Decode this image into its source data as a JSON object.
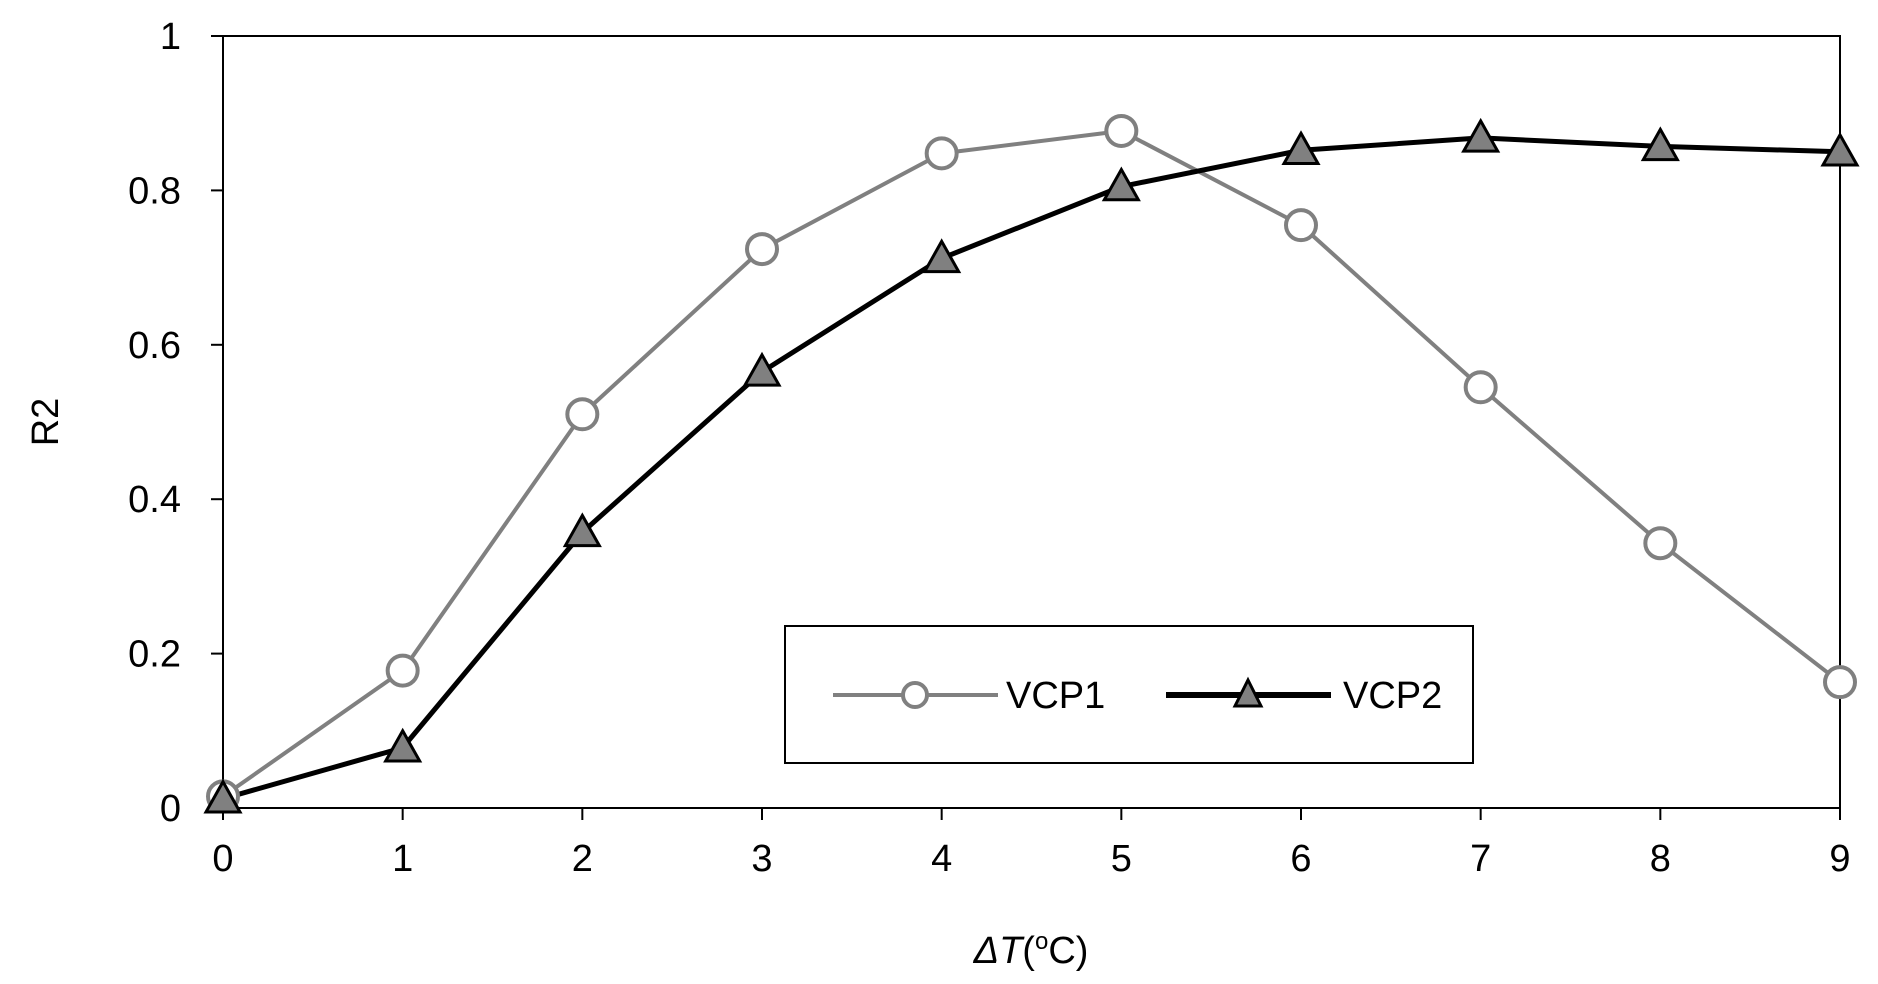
{
  "chart_data": {
    "type": "line",
    "title": "",
    "xlabel_prefix": "ΔT",
    "xlabel_suffix": "(",
    "xlabel_unit_sup": "o",
    "xlabel_unit": "C)",
    "ylabel": "R2",
    "x": [
      0,
      1,
      2,
      3,
      4,
      5,
      6,
      7,
      8,
      9
    ],
    "xlim": [
      0,
      9
    ],
    "ylim": [
      0,
      1
    ],
    "x_ticks": [
      "0",
      "1",
      "2",
      "3",
      "4",
      "5",
      "6",
      "7",
      "8",
      "9"
    ],
    "y_ticks": [
      {
        "value": 0,
        "label": "0"
      },
      {
        "value": 0.2,
        "label": "0.2"
      },
      {
        "value": 0.4,
        "label": "0.4"
      },
      {
        "value": 0.6,
        "label": "0.6"
      },
      {
        "value": 0.8,
        "label": "0.8"
      },
      {
        "value": 1,
        "label": "1"
      }
    ],
    "grid": false,
    "legend_position": "bottom-center",
    "series": [
      {
        "name": "VCP1",
        "marker": "circle",
        "line_color": "#808080",
        "marker_fill": "#ffffff",
        "marker_stroke": "#808080",
        "values": [
          0.015,
          0.178,
          0.51,
          0.724,
          0.848,
          0.877,
          0.755,
          0.545,
          0.343,
          0.163
        ]
      },
      {
        "name": "VCP2",
        "marker": "triangle",
        "line_color": "#000000",
        "marker_fill": "#808080",
        "marker_stroke": "#000000",
        "values": [
          0.012,
          0.078,
          0.357,
          0.565,
          0.712,
          0.805,
          0.852,
          0.868,
          0.857,
          0.85
        ]
      }
    ]
  }
}
